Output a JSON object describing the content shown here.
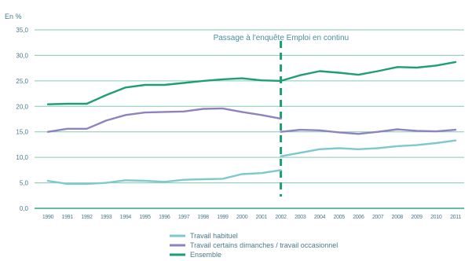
{
  "chart_data": {
    "type": "line",
    "ylabel": "En %",
    "ylim": [
      0,
      35
    ],
    "y_ticks": [
      "0,0",
      "5,0",
      "10,0",
      "15,0",
      "20,0",
      "25,0",
      "30,0",
      "35,0"
    ],
    "y_tick_values": [
      0,
      5,
      10,
      15,
      20,
      25,
      30,
      35
    ],
    "x": [
      1990,
      1991,
      1992,
      1993,
      1994,
      1995,
      1996,
      1997,
      1998,
      1999,
      2000,
      2001,
      2002,
      2003,
      2004,
      2005,
      2006,
      2007,
      2008,
      2009,
      2010,
      2011
    ],
    "x_labels": [
      "1990",
      "1991",
      "1992",
      "1993",
      "1994",
      "1995",
      "1996",
      "1997",
      "1998",
      "1999",
      "2000",
      "2001",
      "2002",
      "2003",
      "2004",
      "2005",
      "2006",
      "2007",
      "2008",
      "2009",
      "2010",
      "2011"
    ],
    "grid": "horizontal",
    "legend": "bottom",
    "annotation": {
      "text": "Passage à l'enquête Emploi en continu",
      "x": 2002
    },
    "series": [
      {
        "name": "Travail habituel",
        "color": "#7ec8d0",
        "segments": [
          {
            "x": [
              1990,
              1991,
              1992,
              1993,
              1994,
              1995,
              1996,
              1997,
              1998,
              1999,
              2000,
              2001,
              2002
            ],
            "y": [
              5.4,
              4.8,
              4.8,
              5.0,
              5.5,
              5.4,
              5.2,
              5.6,
              5.7,
              5.8,
              6.7,
              6.9,
              7.5
            ]
          },
          {
            "x": [
              2002,
              2003,
              2004,
              2005,
              2006,
              2007,
              2008,
              2009,
              2010,
              2011
            ],
            "y": [
              10.2,
              10.9,
              11.6,
              11.8,
              11.6,
              11.8,
              12.2,
              12.4,
              12.8,
              13.3
            ]
          }
        ]
      },
      {
        "name": "Travail certains dimanches / travail occasionnel",
        "color": "#8e82c0",
        "segments": [
          {
            "x": [
              1990,
              1991,
              1992,
              1993,
              1994,
              1995,
              1996,
              1997,
              1998,
              1999,
              2000,
              2001,
              2002
            ],
            "y": [
              15.0,
              15.6,
              15.6,
              17.2,
              18.3,
              18.8,
              18.9,
              19.0,
              19.5,
              19.6,
              18.9,
              18.3,
              17.6
            ]
          },
          {
            "x": [
              2002,
              2003,
              2004,
              2005,
              2006,
              2007,
              2008,
              2009,
              2010,
              2011
            ],
            "y": [
              15.0,
              15.4,
              15.3,
              14.9,
              14.6,
              15.0,
              15.5,
              15.2,
              15.1,
              15.4
            ]
          }
        ]
      },
      {
        "name": "Ensemble",
        "color": "#1e9e74",
        "segments": [
          {
            "x": [
              1990,
              1991,
              1992,
              1993,
              1994,
              1995,
              1996,
              1997,
              1998,
              1999,
              2000,
              2001,
              2002
            ],
            "y": [
              20.4,
              20.5,
              20.5,
              22.2,
              23.7,
              24.2,
              24.2,
              24.6,
              25.0,
              25.3,
              25.5,
              25.1,
              25.0
            ]
          },
          {
            "x": [
              2002,
              2003,
              2004,
              2005,
              2006,
              2007,
              2008,
              2009,
              2010,
              2011
            ],
            "y": [
              25.0,
              26.1,
              26.9,
              26.6,
              26.2,
              26.9,
              27.7,
              27.6,
              28.0,
              28.7
            ]
          }
        ]
      }
    ]
  }
}
